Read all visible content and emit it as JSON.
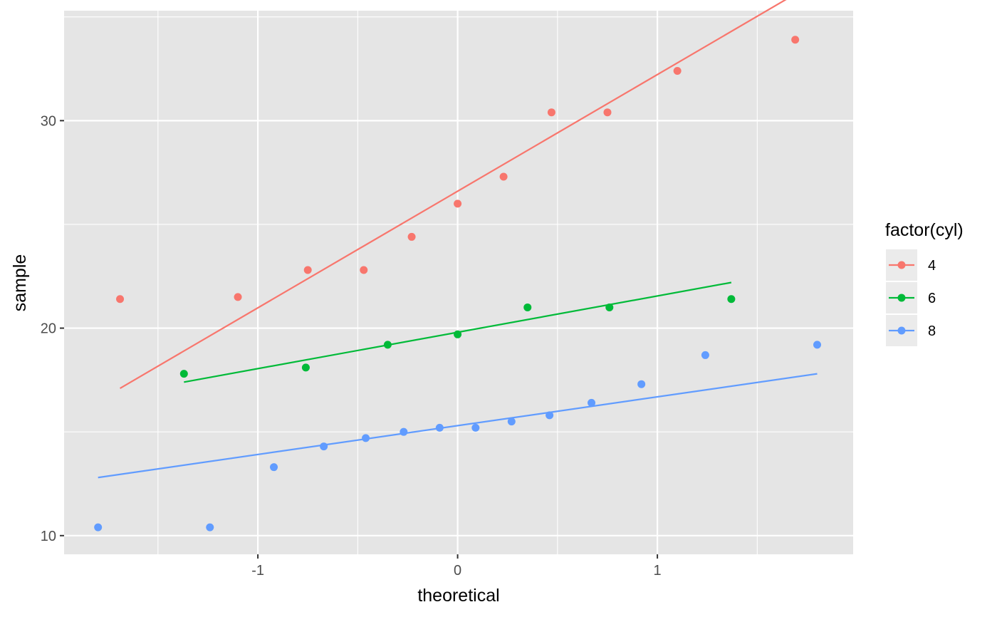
{
  "chart_data": {
    "type": "scatter",
    "xlabel": "theoretical",
    "ylabel": "sample",
    "xlim": [
      -1.97,
      1.98
    ],
    "ylim": [
      9.1,
      35.3
    ],
    "x_ticks": [
      -1,
      0,
      1
    ],
    "x_tick_labels": [
      "-1",
      "0",
      "1"
    ],
    "y_ticks": [
      10,
      20,
      30
    ],
    "y_tick_labels": [
      "10",
      "20",
      "30"
    ],
    "grid": true,
    "background": "#e5e5e5",
    "legend": {
      "title": "factor(cyl)",
      "position": "right",
      "entries": [
        "4",
        "6",
        "8"
      ]
    },
    "series": [
      {
        "name": "4",
        "color": "#f8766d",
        "points": [
          {
            "x": -1.69,
            "y": 21.4
          },
          {
            "x": -1.1,
            "y": 21.5
          },
          {
            "x": -0.75,
            "y": 22.8
          },
          {
            "x": -0.47,
            "y": 22.8
          },
          {
            "x": -0.23,
            "y": 24.4
          },
          {
            "x": 0.0,
            "y": 26.0
          },
          {
            "x": 0.23,
            "y": 27.3
          },
          {
            "x": 0.47,
            "y": 30.4
          },
          {
            "x": 0.75,
            "y": 30.4
          },
          {
            "x": 1.1,
            "y": 32.4
          },
          {
            "x": 1.69,
            "y": 33.9
          }
        ],
        "line": [
          {
            "x": -1.69,
            "y": 17.1
          },
          {
            "x": 1.69,
            "y": 36.1
          }
        ]
      },
      {
        "name": "6",
        "color": "#00ba38",
        "points": [
          {
            "x": -1.37,
            "y": 17.8
          },
          {
            "x": -0.76,
            "y": 18.1
          },
          {
            "x": -0.35,
            "y": 19.2
          },
          {
            "x": 0.0,
            "y": 19.7
          },
          {
            "x": 0.35,
            "y": 21.0
          },
          {
            "x": 0.76,
            "y": 21.0
          },
          {
            "x": 1.37,
            "y": 21.4
          }
        ],
        "line": [
          {
            "x": -1.37,
            "y": 17.4
          },
          {
            "x": 1.37,
            "y": 22.2
          }
        ]
      },
      {
        "name": "8",
        "color": "#619cff",
        "points": [
          {
            "x": -1.8,
            "y": 10.4
          },
          {
            "x": -1.24,
            "y": 10.4
          },
          {
            "x": -0.92,
            "y": 13.3
          },
          {
            "x": -0.67,
            "y": 14.3
          },
          {
            "x": -0.46,
            "y": 14.7
          },
          {
            "x": -0.27,
            "y": 15.0
          },
          {
            "x": -0.09,
            "y": 15.2
          },
          {
            "x": 0.09,
            "y": 15.2
          },
          {
            "x": 0.27,
            "y": 15.5
          },
          {
            "x": 0.46,
            "y": 15.8
          },
          {
            "x": 0.67,
            "y": 16.4
          },
          {
            "x": 0.92,
            "y": 17.3
          },
          {
            "x": 1.24,
            "y": 18.7
          },
          {
            "x": 1.8,
            "y": 19.2
          }
        ],
        "line": [
          {
            "x": -1.8,
            "y": 12.8
          },
          {
            "x": 1.8,
            "y": 17.8
          }
        ]
      }
    ]
  }
}
